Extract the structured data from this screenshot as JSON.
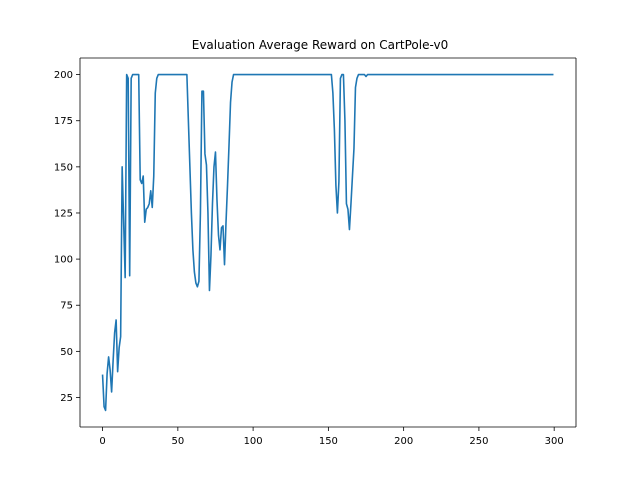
{
  "chart_data": {
    "type": "line",
    "title": "Evaluation Average Reward on CartPole-v0",
    "xlabel": "",
    "ylabel": "",
    "xlim": [
      -15,
      314.5
    ],
    "ylim": [
      9,
      209
    ],
    "x_ticks": [
      0,
      50,
      100,
      150,
      200,
      250,
      300
    ],
    "y_ticks": [
      25,
      50,
      75,
      100,
      125,
      150,
      175,
      200
    ],
    "grid": false,
    "series": [
      {
        "color": "#1f77b4",
        "points": [
          [
            0,
            37
          ],
          [
            1,
            20
          ],
          [
            2,
            18
          ],
          [
            3,
            38
          ],
          [
            4,
            47
          ],
          [
            5,
            40
          ],
          [
            6,
            28
          ],
          [
            7,
            45
          ],
          [
            8,
            60
          ],
          [
            9,
            67
          ],
          [
            10,
            39
          ],
          [
            11,
            52
          ],
          [
            12,
            58
          ],
          [
            13,
            150
          ],
          [
            14,
            120
          ],
          [
            15,
            90
          ],
          [
            16,
            200
          ],
          [
            17,
            198
          ],
          [
            18,
            91
          ],
          [
            19,
            198
          ],
          [
            20,
            200
          ],
          [
            21,
            200
          ],
          [
            22,
            200
          ],
          [
            23,
            200
          ],
          [
            24,
            200
          ],
          [
            25,
            143
          ],
          [
            26,
            141
          ],
          [
            27,
            145
          ],
          [
            28,
            120
          ],
          [
            29,
            127
          ],
          [
            30,
            128
          ],
          [
            31,
            130
          ],
          [
            32,
            137
          ],
          [
            33,
            128
          ],
          [
            34,
            145
          ],
          [
            35,
            190
          ],
          [
            36,
            198
          ],
          [
            37,
            200
          ],
          [
            40,
            200
          ],
          [
            45,
            200
          ],
          [
            50,
            200
          ],
          [
            55,
            200
          ],
          [
            56,
            200
          ],
          [
            57,
            175
          ],
          [
            58,
            150
          ],
          [
            59,
            125
          ],
          [
            60,
            105
          ],
          [
            61,
            93
          ],
          [
            62,
            87
          ],
          [
            63,
            85
          ],
          [
            64,
            88
          ],
          [
            65,
            125
          ],
          [
            66,
            191
          ],
          [
            67,
            191
          ],
          [
            68,
            157
          ],
          [
            69,
            151
          ],
          [
            70,
            125
          ],
          [
            71,
            83
          ],
          [
            72,
            102
          ],
          [
            73,
            130
          ],
          [
            74,
            150
          ],
          [
            75,
            158
          ],
          [
            76,
            132
          ],
          [
            77,
            113
          ],
          [
            78,
            105
          ],
          [
            79,
            117
          ],
          [
            80,
            118
          ],
          [
            81,
            97
          ],
          [
            82,
            120
          ],
          [
            83,
            140
          ],
          [
            84,
            162
          ],
          [
            85,
            185
          ],
          [
            86,
            196
          ],
          [
            87,
            200
          ],
          [
            90,
            200
          ],
          [
            100,
            200
          ],
          [
            120,
            200
          ],
          [
            140,
            200
          ],
          [
            150,
            200
          ],
          [
            152,
            200
          ],
          [
            153,
            190
          ],
          [
            154,
            170
          ],
          [
            155,
            140
          ],
          [
            156,
            125
          ],
          [
            157,
            142
          ],
          [
            158,
            198
          ],
          [
            159,
            200
          ],
          [
            160,
            200
          ],
          [
            161,
            175
          ],
          [
            162,
            130
          ],
          [
            163,
            127
          ],
          [
            164,
            116
          ],
          [
            165,
            130
          ],
          [
            166,
            145
          ],
          [
            167,
            160
          ],
          [
            168,
            193
          ],
          [
            169,
            198
          ],
          [
            170,
            200
          ],
          [
            173,
            200
          ],
          [
            174,
            200
          ],
          [
            175,
            199
          ],
          [
            176,
            200
          ],
          [
            180,
            200
          ],
          [
            200,
            200
          ],
          [
            250,
            200
          ],
          [
            299,
            200
          ]
        ]
      }
    ]
  }
}
